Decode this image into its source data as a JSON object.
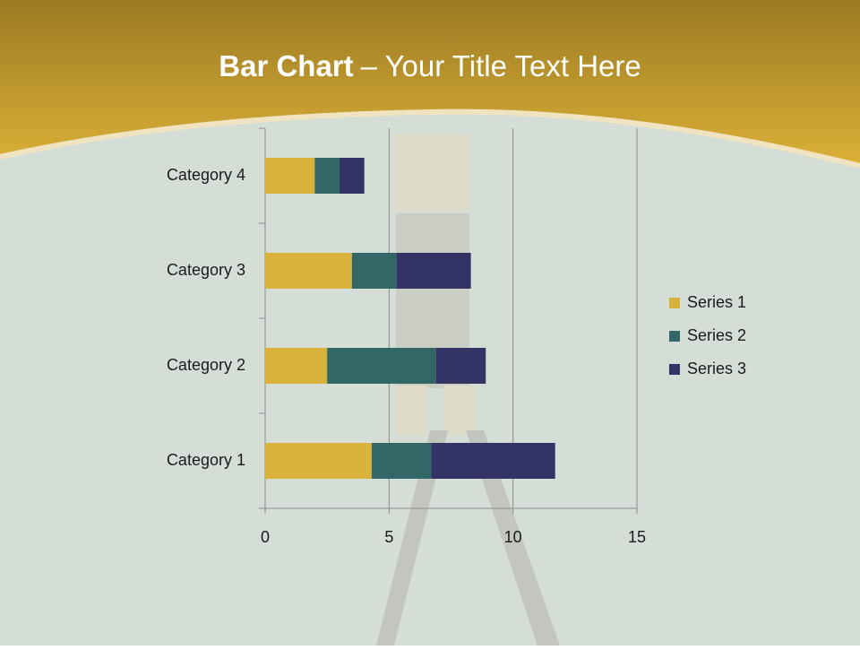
{
  "chart_data": {
    "type": "stacked_bar_horizontal",
    "title": {
      "bold": "Bar Chart",
      "rest": "– Your Title Text Here"
    },
    "categories": [
      "Category 1",
      "Category 2",
      "Category 3",
      "Category 4"
    ],
    "series": [
      {
        "name": "Series 1",
        "color": "#d9b23c",
        "values": [
          4.3,
          2.5,
          3.5,
          2.0
        ]
      },
      {
        "name": "Series 2",
        "color": "#336666",
        "values": [
          2.4,
          4.4,
          1.8,
          1.0
        ]
      },
      {
        "name": "Series 3",
        "color": "#333366",
        "values": [
          5.0,
          2.0,
          3.0,
          1.0
        ]
      }
    ],
    "xlim": [
      0,
      15
    ],
    "xticks": [
      0,
      5,
      10,
      15
    ],
    "grid": true,
    "legend": "right"
  }
}
